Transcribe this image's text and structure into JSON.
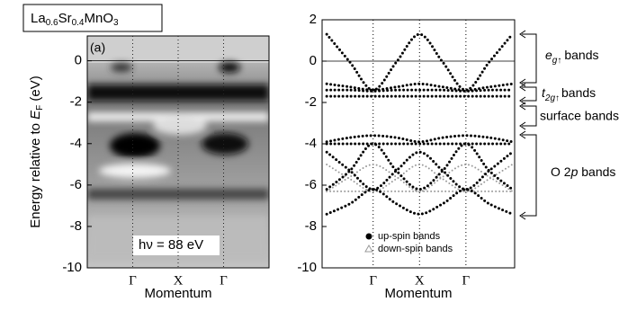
{
  "chart_data": [
    {
      "type": "image",
      "title": [
        "La",
        "0.6",
        "Sr",
        "0.4",
        "MnO",
        "3"
      ],
      "annotations": [
        "(a)",
        "hν = 88 eV"
      ],
      "ylabel": [
        "Energy relative to ",
        "E",
        "F",
        " (eV)"
      ],
      "xlabel": "Momentum",
      "xlim": [
        -1,
        3
      ],
      "xticks": [
        {
          "value": 0,
          "label": "Γ"
        },
        {
          "value": 1,
          "label": "X"
        },
        {
          "value": 2,
          "label": "Γ"
        }
      ],
      "ylim": [
        -10,
        1.2
      ],
      "yticks": [
        0,
        -2,
        -4,
        -6,
        -8,
        -10
      ],
      "zero_line": true
    },
    {
      "type": "bands",
      "xlabel": "Momentum",
      "xlim": [
        -1.1,
        3.05
      ],
      "xticks": [
        {
          "value": 0,
          "label": "Γ"
        },
        {
          "value": 1,
          "label": "X"
        },
        {
          "value": 2,
          "label": "Γ"
        }
      ],
      "ylim": [
        -10,
        2
      ],
      "yticks": [
        2,
        0,
        -2,
        -4,
        -6,
        -8,
        -10
      ],
      "zero_line": true,
      "x": [
        -1,
        -0.5,
        0,
        0.5,
        1,
        1.5,
        2,
        2.5,
        3
      ],
      "series": [
        {
          "name": "up-spin bands",
          "color": "#000000",
          "marker": "circle",
          "lines": [
            [
              1.3,
              -0.05,
              -1.4,
              -0.05,
              1.3,
              -0.05,
              -1.4,
              -0.05,
              1.3
            ],
            [
              -1.1,
              -1.25,
              -1.4,
              -1.25,
              -1.1,
              -1.25,
              -1.4,
              -1.25,
              -1.1
            ],
            [
              -1.4,
              -1.4,
              -1.45,
              -1.4,
              -1.4,
              -1.4,
              -1.45,
              -1.4,
              -1.4
            ],
            [
              -1.7,
              -1.7,
              -1.7,
              -1.7,
              -1.7,
              -1.7,
              -1.7,
              -1.7,
              -1.7
            ],
            [
              -3.9,
              -3.7,
              -3.6,
              -3.7,
              -3.9,
              -3.7,
              -3.6,
              -3.7,
              -3.9
            ],
            [
              -4.0,
              -4.0,
              -4.0,
              -4.0,
              -4.0,
              -4.0,
              -4.0,
              -4.0,
              -4.0
            ],
            [
              -6.2,
              -5.3,
              -4.0,
              -5.3,
              -6.2,
              -5.3,
              -4.0,
              -5.3,
              -6.2
            ],
            [
              -4.4,
              -5.3,
              -6.2,
              -5.3,
              -4.4,
              -5.3,
              -6.2,
              -5.3,
              -4.4
            ],
            [
              -7.4,
              -6.9,
              -6.2,
              -6.9,
              -7.4,
              -6.9,
              -6.2,
              -6.9,
              -7.4
            ]
          ]
        },
        {
          "name": "down-spin bands",
          "color": "#999999",
          "marker": "triangle",
          "lines": [
            [
              -6.3,
              -5.6,
              -5.0,
              -5.6,
              -6.3,
              -5.6,
              -5.0,
              -5.6,
              -6.3
            ],
            [
              -5.0,
              -5.7,
              -6.3,
              -5.7,
              -5.0,
              -5.7,
              -6.3,
              -5.7,
              -5.0
            ],
            [
              -6.3,
              -6.3,
              -6.3,
              -6.3,
              -6.3,
              -6.3,
              -6.3,
              -6.3,
              -6.3
            ]
          ]
        }
      ],
      "annotations": [
        [
          "e",
          "g↑",
          "bands"
        ],
        [
          "t",
          "2g↑",
          "bands"
        ],
        [
          "surface bands"
        ],
        [
          "O 2",
          "p",
          " bands"
        ]
      ]
    }
  ]
}
